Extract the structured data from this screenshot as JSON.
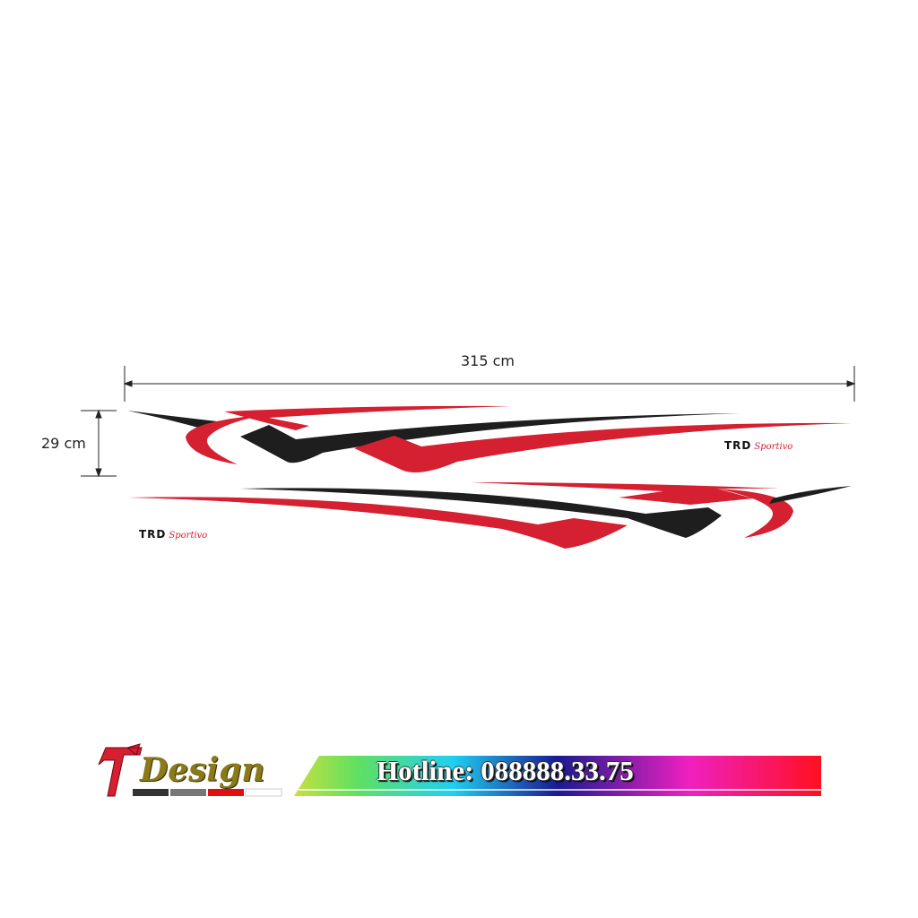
{
  "dimensions": {
    "width_label": "315 cm",
    "height_label": "29 cm"
  },
  "decals": {
    "top_brand": {
      "mark": "TRD",
      "script": "Sportivo"
    },
    "bottom_brand": {
      "mark": "TRD",
      "script": "Sportivo"
    },
    "colors": {
      "red": "#d42030",
      "black": "#1e1e1e"
    }
  },
  "banner": {
    "logo_text": "Design",
    "hotline": "Hotline: 088888.33.75",
    "gradient": [
      "#b8e040",
      "#20d0f0",
      "#1a1a90",
      "#f020c0",
      "#ff1020"
    ]
  }
}
